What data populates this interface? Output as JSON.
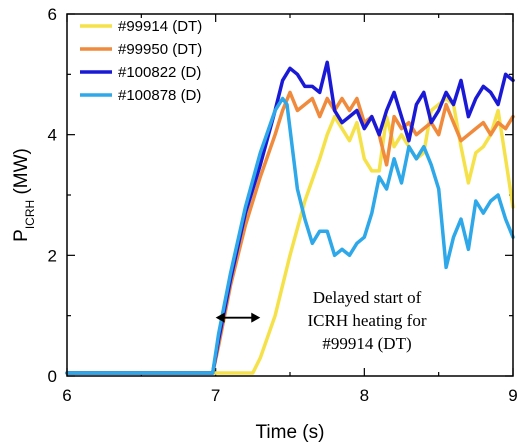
{
  "chart_data": {
    "type": "line",
    "xlabel": "Time (s)",
    "ylabel": {
      "main": "P",
      "sub": "ICRH",
      "unit": " (MW)"
    },
    "xlim": [
      6,
      9
    ],
    "ylim": [
      0,
      6
    ],
    "xticks": [
      "6",
      "7",
      "8",
      "9"
    ],
    "yticks": [
      "0",
      "2",
      "4",
      "6"
    ],
    "grid": false,
    "legend_position": "top-left",
    "series": [
      {
        "name": "#99914 (DT)",
        "color": "#f5e24a",
        "points": [
          [
            6.0,
            0.05
          ],
          [
            7.25,
            0.05
          ],
          [
            7.3,
            0.3
          ],
          [
            7.4,
            1.0
          ],
          [
            7.5,
            2.0
          ],
          [
            7.6,
            2.9
          ],
          [
            7.7,
            3.6
          ],
          [
            7.75,
            4.0
          ],
          [
            7.8,
            4.3
          ],
          [
            7.85,
            4.1
          ],
          [
            7.9,
            3.9
          ],
          [
            7.95,
            4.2
          ],
          [
            8.0,
            3.6
          ],
          [
            8.05,
            3.4
          ],
          [
            8.1,
            3.4
          ],
          [
            8.15,
            4.3
          ],
          [
            8.2,
            3.8
          ],
          [
            8.25,
            4.0
          ],
          [
            8.3,
            3.8
          ],
          [
            8.35,
            3.6
          ],
          [
            8.4,
            3.7
          ],
          [
            8.45,
            4.4
          ],
          [
            8.5,
            4.5
          ],
          [
            8.55,
            4.6
          ],
          [
            8.6,
            4.5
          ],
          [
            8.65,
            3.8
          ],
          [
            8.7,
            3.2
          ],
          [
            8.75,
            3.7
          ],
          [
            8.8,
            3.8
          ],
          [
            8.85,
            4.0
          ],
          [
            8.9,
            4.4
          ],
          [
            8.95,
            3.6
          ],
          [
            9.0,
            2.8
          ]
        ]
      },
      {
        "name": "#99950 (DT)",
        "color": "#f08a3c",
        "points": [
          [
            6.0,
            0.05
          ],
          [
            6.98,
            0.05
          ],
          [
            7.02,
            0.5
          ],
          [
            7.1,
            1.5
          ],
          [
            7.2,
            2.5
          ],
          [
            7.3,
            3.3
          ],
          [
            7.4,
            4.0
          ],
          [
            7.45,
            4.4
          ],
          [
            7.5,
            4.7
          ],
          [
            7.55,
            4.4
          ],
          [
            7.6,
            4.5
          ],
          [
            7.65,
            4.6
          ],
          [
            7.7,
            4.3
          ],
          [
            7.75,
            4.6
          ],
          [
            7.8,
            4.4
          ],
          [
            7.85,
            4.6
          ],
          [
            7.9,
            4.4
          ],
          [
            7.95,
            4.6
          ],
          [
            8.0,
            4.2
          ],
          [
            8.05,
            4.3
          ],
          [
            8.1,
            4.0
          ],
          [
            8.15,
            3.5
          ],
          [
            8.2,
            4.3
          ],
          [
            8.25,
            4.1
          ],
          [
            8.3,
            4.2
          ],
          [
            8.35,
            4.0
          ],
          [
            8.4,
            4.1
          ],
          [
            8.45,
            4.2
          ],
          [
            8.5,
            4.0
          ],
          [
            8.55,
            4.5
          ],
          [
            8.6,
            4.2
          ],
          [
            8.65,
            3.9
          ],
          [
            8.7,
            4.0
          ],
          [
            8.75,
            4.1
          ],
          [
            8.8,
            4.2
          ],
          [
            8.85,
            4.0
          ],
          [
            8.9,
            4.2
          ],
          [
            8.95,
            4.1
          ],
          [
            9.0,
            4.3
          ]
        ]
      },
      {
        "name": "#100822 (D)",
        "color": "#1a1ad6",
        "points": [
          [
            6.0,
            0.05
          ],
          [
            6.98,
            0.05
          ],
          [
            7.02,
            0.6
          ],
          [
            7.1,
            1.6
          ],
          [
            7.2,
            2.7
          ],
          [
            7.3,
            3.5
          ],
          [
            7.4,
            4.4
          ],
          [
            7.45,
            4.9
          ],
          [
            7.5,
            5.1
          ],
          [
            7.55,
            5.0
          ],
          [
            7.6,
            4.8
          ],
          [
            7.65,
            4.8
          ],
          [
            7.7,
            4.7
          ],
          [
            7.75,
            5.2
          ],
          [
            7.8,
            4.4
          ],
          [
            7.85,
            4.2
          ],
          [
            7.9,
            4.3
          ],
          [
            7.95,
            4.4
          ],
          [
            8.0,
            4.1
          ],
          [
            8.05,
            4.3
          ],
          [
            8.1,
            4.0
          ],
          [
            8.15,
            4.4
          ],
          [
            8.2,
            4.7
          ],
          [
            8.25,
            4.3
          ],
          [
            8.3,
            3.9
          ],
          [
            8.35,
            4.5
          ],
          [
            8.4,
            4.7
          ],
          [
            8.45,
            4.2
          ],
          [
            8.5,
            4.4
          ],
          [
            8.55,
            4.7
          ],
          [
            8.6,
            4.5
          ],
          [
            8.65,
            4.9
          ],
          [
            8.7,
            4.3
          ],
          [
            8.75,
            4.6
          ],
          [
            8.8,
            4.8
          ],
          [
            8.85,
            4.7
          ],
          [
            8.9,
            4.5
          ],
          [
            8.95,
            5.0
          ],
          [
            9.0,
            4.9
          ]
        ]
      },
      {
        "name": "#100878 (D)",
        "color": "#2ea8e8",
        "points": [
          [
            6.0,
            0.05
          ],
          [
            6.98,
            0.05
          ],
          [
            7.02,
            0.7
          ],
          [
            7.1,
            1.7
          ],
          [
            7.2,
            2.8
          ],
          [
            7.3,
            3.7
          ],
          [
            7.4,
            4.4
          ],
          [
            7.45,
            4.6
          ],
          [
            7.48,
            4.5
          ],
          [
            7.55,
            3.1
          ],
          [
            7.6,
            2.6
          ],
          [
            7.65,
            2.2
          ],
          [
            7.7,
            2.4
          ],
          [
            7.75,
            2.4
          ],
          [
            7.8,
            2.0
          ],
          [
            7.85,
            2.1
          ],
          [
            7.9,
            2.0
          ],
          [
            7.95,
            2.2
          ],
          [
            8.0,
            2.3
          ],
          [
            8.05,
            2.7
          ],
          [
            8.1,
            3.3
          ],
          [
            8.15,
            3.1
          ],
          [
            8.2,
            3.6
          ],
          [
            8.25,
            3.2
          ],
          [
            8.3,
            3.8
          ],
          [
            8.35,
            3.6
          ],
          [
            8.4,
            3.8
          ],
          [
            8.45,
            3.5
          ],
          [
            8.5,
            3.1
          ],
          [
            8.55,
            1.8
          ],
          [
            8.6,
            2.3
          ],
          [
            8.65,
            2.6
          ],
          [
            8.7,
            2.1
          ],
          [
            8.75,
            2.9
          ],
          [
            8.8,
            2.7
          ],
          [
            8.85,
            2.9
          ],
          [
            8.9,
            3.0
          ],
          [
            8.95,
            2.6
          ],
          [
            9.0,
            2.3
          ]
        ]
      }
    ],
    "annotation": {
      "lines": [
        "Delayed start of",
        "ICRH heating for",
        "#99914 (DT)"
      ],
      "arrow": {
        "x_start": 7.0,
        "x_end": 7.3,
        "y": 1.0
      }
    }
  }
}
